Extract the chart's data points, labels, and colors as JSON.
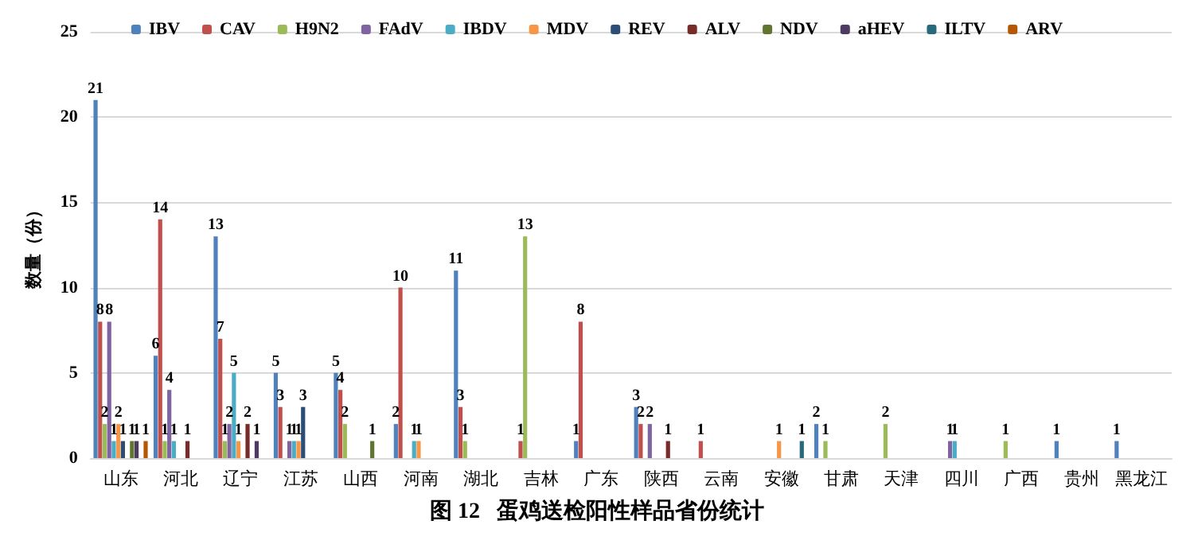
{
  "chart_data": {
    "type": "bar",
    "title": "图 12   蛋鸡送检阳性样品省份统计",
    "ylabel": "数量（份）",
    "categories": [
      "山东",
      "河北",
      "辽宁",
      "江苏",
      "山西",
      "河南",
      "湖北",
      "吉林",
      "广东",
      "陕西",
      "云南",
      "安徽",
      "甘肃",
      "天津",
      "四川",
      "广西",
      "贵州",
      "黑龙江"
    ],
    "ylim": [
      0,
      25
    ],
    "yticks": [
      0,
      5,
      10,
      15,
      20,
      25
    ],
    "grid": "y",
    "legend": "top",
    "data_labels": true,
    "series": [
      {
        "name": "IBV",
        "color": "#4f81bd",
        "values": [
          21,
          6,
          13,
          5,
          5,
          2,
          11,
          null,
          1,
          3,
          null,
          null,
          2,
          null,
          null,
          null,
          1,
          1
        ]
      },
      {
        "name": "CAV",
        "color": "#c0504d",
        "values": [
          8,
          14,
          7,
          3,
          4,
          10,
          3,
          1,
          8,
          2,
          1,
          null,
          null,
          null,
          null,
          null,
          null,
          null
        ]
      },
      {
        "name": "H9N2",
        "color": "#9bbb59",
        "values": [
          2,
          1,
          1,
          null,
          2,
          null,
          1,
          13,
          null,
          null,
          null,
          null,
          1,
          2,
          null,
          1,
          null,
          null
        ]
      },
      {
        "name": "FAdV",
        "color": "#8064a2",
        "values": [
          8,
          4,
          2,
          1,
          null,
          null,
          null,
          null,
          null,
          2,
          null,
          null,
          null,
          null,
          1,
          null,
          null,
          null
        ]
      },
      {
        "name": "IBDV",
        "color": "#4bacc6",
        "values": [
          1,
          1,
          5,
          1,
          null,
          1,
          null,
          null,
          null,
          null,
          null,
          null,
          null,
          null,
          1,
          null,
          null,
          null
        ]
      },
      {
        "name": "MDV",
        "color": "#f79646",
        "values": [
          2,
          null,
          1,
          1,
          null,
          1,
          null,
          null,
          null,
          null,
          null,
          1,
          null,
          null,
          null,
          null,
          null,
          null
        ]
      },
      {
        "name": "REV",
        "color": "#2c4d75",
        "values": [
          1,
          null,
          null,
          3,
          null,
          null,
          null,
          null,
          null,
          null,
          null,
          null,
          null,
          null,
          null,
          null,
          null,
          null
        ]
      },
      {
        "name": "ALV",
        "color": "#772c2a",
        "values": [
          null,
          1,
          2,
          null,
          null,
          null,
          null,
          null,
          null,
          1,
          null,
          null,
          null,
          null,
          null,
          null,
          null,
          null
        ]
      },
      {
        "name": "NDV",
        "color": "#5f7530",
        "values": [
          1,
          null,
          null,
          null,
          1,
          null,
          null,
          null,
          null,
          null,
          null,
          null,
          null,
          null,
          null,
          null,
          null,
          null
        ]
      },
      {
        "name": "aHEV",
        "color": "#4d3b62",
        "values": [
          1,
          null,
          1,
          null,
          null,
          null,
          null,
          null,
          null,
          null,
          null,
          null,
          null,
          null,
          null,
          null,
          null,
          null
        ]
      },
      {
        "name": "ILTV",
        "color": "#276a7c",
        "values": [
          null,
          null,
          null,
          null,
          null,
          null,
          null,
          null,
          null,
          null,
          null,
          1,
          null,
          null,
          null,
          null,
          null,
          null
        ]
      },
      {
        "name": "ARV",
        "color": "#b65708",
        "values": [
          1,
          null,
          null,
          null,
          null,
          null,
          null,
          null,
          null,
          null,
          null,
          null,
          null,
          null,
          null,
          null,
          null,
          null
        ]
      }
    ]
  }
}
